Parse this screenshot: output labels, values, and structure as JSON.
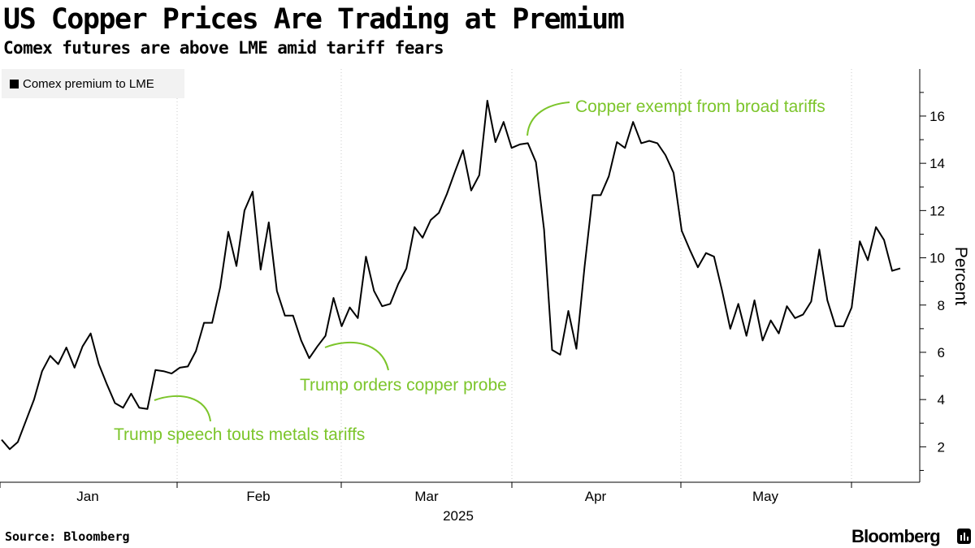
{
  "header": {
    "title": "US Copper Prices Are Trading at Premium",
    "subtitle": "Comex futures are above LME amid tariff fears"
  },
  "legend": {
    "label": "Comex premium to LME"
  },
  "footer": {
    "source": "Source: Bloomberg",
    "brand": "Bloomberg"
  },
  "chart_data": {
    "type": "line",
    "title": "US Copper Prices Are Trading at Premium",
    "subtitle": "Comex futures are above LME amid tariff fears",
    "xlabel": "2025",
    "ylabel": "Percent",
    "ylim": [
      0.5,
      18
    ],
    "yticks": [
      2,
      4,
      6,
      8,
      10,
      12,
      14,
      16
    ],
    "grid": "vertical dotted",
    "legend_position": "top-left",
    "months": [
      "Jan",
      "Feb",
      "Mar",
      "Apr",
      "May"
    ],
    "year_label": "2025",
    "series": [
      {
        "name": "Comex premium to LME",
        "color": "#000000",
        "values": [
          2.3,
          1.9,
          2.2,
          3.1,
          4.0,
          5.2,
          5.85,
          5.5,
          6.2,
          5.35,
          6.25,
          6.8,
          5.5,
          4.65,
          3.85,
          3.65,
          4.25,
          3.65,
          3.6,
          5.25,
          5.2,
          5.1,
          5.35,
          5.4,
          6.05,
          7.25,
          7.25,
          8.75,
          11.1,
          9.65,
          12.0,
          12.8,
          9.5,
          11.5,
          8.6,
          7.55,
          7.55,
          6.5,
          5.75,
          6.25,
          6.7,
          8.3,
          7.1,
          7.9,
          7.45,
          10.05,
          8.6,
          7.95,
          8.05,
          8.9,
          9.55,
          11.3,
          10.85,
          11.6,
          11.9,
          12.7,
          13.65,
          14.55,
          12.85,
          13.5,
          16.65,
          14.9,
          15.75,
          14.65,
          14.8,
          14.85,
          14.05,
          11.2,
          6.1,
          5.9,
          7.75,
          6.15,
          9.6,
          12.65,
          12.65,
          13.45,
          14.9,
          14.65,
          15.75,
          14.85,
          14.95,
          14.85,
          14.35,
          13.6,
          11.15,
          10.35,
          9.6,
          10.2,
          10.05,
          8.6,
          7.0,
          8.05,
          6.7,
          8.2,
          6.5,
          7.35,
          6.8,
          7.95,
          7.45,
          7.6,
          8.15,
          10.35,
          8.2,
          7.1,
          7.1,
          7.9,
          10.7,
          9.9,
          11.3,
          10.75,
          9.45,
          9.55
        ]
      }
    ],
    "annotations": [
      {
        "text": "Trump speech touts metals tariffs",
        "point_index": 19,
        "color": "#7cc52b"
      },
      {
        "text": "Trump orders copper probe",
        "point_index": 40,
        "color": "#7cc52b"
      },
      {
        "text": "Copper exempt from broad tariffs",
        "point_index": 65,
        "color": "#7cc52b"
      }
    ]
  }
}
